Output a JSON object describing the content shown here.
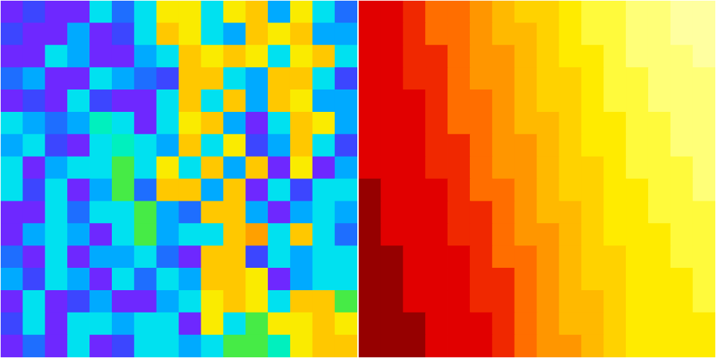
{
  "chart_data": [
    {
      "type": "heatmap",
      "color": "jet",
      "tick_labels": false,
      "value_range": [
        0,
        9
      ],
      "cells": [
        [
          0,
          1,
          0,
          0,
          4,
          2,
          4,
          7,
          7,
          4,
          7,
          8,
          3,
          7,
          4,
          2
        ],
        [
          1,
          0,
          0,
          3,
          0,
          1,
          4,
          8,
          7,
          4,
          3,
          8,
          7,
          8,
          3,
          3
        ],
        [
          0,
          0,
          4,
          3,
          0,
          0,
          3,
          4,
          8,
          7,
          8,
          7,
          4,
          7,
          8,
          4
        ],
        [
          2,
          3,
          0,
          0,
          4,
          3,
          2,
          1,
          8,
          8,
          4,
          3,
          8,
          8,
          4,
          1
        ],
        [
          0,
          1,
          0,
          4,
          1,
          0,
          0,
          4,
          8,
          4,
          8,
          3,
          8,
          7,
          3,
          3
        ],
        [
          4,
          3,
          2,
          3,
          5,
          4,
          0,
          4,
          7,
          8,
          3,
          0,
          4,
          8,
          7,
          3
        ],
        [
          3,
          4,
          1,
          0,
          4,
          5,
          4,
          3,
          8,
          4,
          7,
          1,
          3,
          8,
          4,
          1
        ],
        [
          4,
          0,
          3,
          4,
          4,
          6,
          4,
          7,
          4,
          8,
          3,
          8,
          0,
          7,
          0,
          3
        ],
        [
          4,
          1,
          4,
          0,
          3,
          6,
          2,
          8,
          8,
          3,
          8,
          0,
          4,
          1,
          4,
          4
        ],
        [
          0,
          0,
          4,
          2,
          4,
          4,
          6,
          3,
          2,
          8,
          8,
          3,
          0,
          3,
          4,
          3
        ],
        [
          0,
          3,
          4,
          3,
          0,
          4,
          6,
          3,
          4,
          4,
          8,
          9,
          4,
          8,
          4,
          2
        ],
        [
          2,
          0,
          4,
          0,
          3,
          3,
          4,
          2,
          0,
          8,
          8,
          1,
          4,
          3,
          4,
          4
        ],
        [
          3,
          1,
          4,
          3,
          0,
          4,
          2,
          4,
          3,
          8,
          8,
          7,
          0,
          3,
          4,
          4
        ],
        [
          0,
          4,
          0,
          1,
          3,
          0,
          0,
          3,
          4,
          7,
          8,
          7,
          4,
          8,
          8,
          6
        ],
        [
          1,
          4,
          0,
          4,
          4,
          3,
          4,
          4,
          0,
          7,
          4,
          6,
          7,
          7,
          8,
          7
        ],
        [
          0,
          2,
          0,
          4,
          0,
          1,
          4,
          4,
          3,
          4,
          6,
          6,
          5,
          7,
          8,
          8
        ]
      ]
    },
    {
      "type": "heatmap",
      "color": "hot",
      "tick_labels": false,
      "value_range": [
        0,
        10
      ],
      "cells": [
        [
          1,
          1,
          2,
          3,
          3,
          4,
          5,
          6,
          6,
          7,
          8,
          8,
          9,
          9,
          10,
          10
        ],
        [
          1,
          1,
          2,
          3,
          3,
          4,
          5,
          5,
          6,
          7,
          8,
          8,
          9,
          9,
          10,
          10
        ],
        [
          1,
          1,
          2,
          2,
          3,
          4,
          4,
          5,
          6,
          7,
          7,
          8,
          9,
          9,
          9,
          10
        ],
        [
          1,
          1,
          2,
          2,
          3,
          4,
          4,
          5,
          6,
          6,
          7,
          8,
          8,
          9,
          9,
          9
        ],
        [
          1,
          1,
          1,
          2,
          3,
          3,
          4,
          5,
          6,
          6,
          7,
          8,
          8,
          9,
          9,
          9
        ],
        [
          1,
          1,
          1,
          2,
          3,
          3,
          4,
          5,
          5,
          6,
          7,
          7,
          8,
          8,
          9,
          9
        ],
        [
          1,
          1,
          1,
          2,
          2,
          3,
          4,
          4,
          5,
          6,
          7,
          7,
          8,
          8,
          9,
          9
        ],
        [
          1,
          1,
          1,
          2,
          2,
          3,
          4,
          4,
          5,
          6,
          6,
          7,
          8,
          8,
          8,
          9
        ],
        [
          0,
          1,
          1,
          1,
          2,
          3,
          3,
          4,
          5,
          6,
          6,
          7,
          7,
          8,
          8,
          9
        ],
        [
          0,
          1,
          1,
          1,
          2,
          2,
          3,
          4,
          5,
          5,
          6,
          7,
          7,
          8,
          8,
          8
        ],
        [
          0,
          1,
          1,
          1,
          2,
          2,
          3,
          4,
          4,
          5,
          6,
          7,
          7,
          7,
          8,
          8
        ],
        [
          0,
          0,
          1,
          1,
          1,
          2,
          3,
          3,
          4,
          5,
          6,
          6,
          7,
          7,
          8,
          8
        ],
        [
          0,
          0,
          1,
          1,
          1,
          2,
          2,
          3,
          4,
          5,
          6,
          6,
          7,
          7,
          7,
          8
        ],
        [
          0,
          0,
          1,
          1,
          1,
          2,
          2,
          3,
          4,
          5,
          5,
          6,
          7,
          7,
          7,
          8
        ],
        [
          0,
          0,
          0,
          1,
          1,
          1,
          2,
          3,
          4,
          5,
          5,
          6,
          7,
          7,
          7,
          7
        ],
        [
          0,
          0,
          0,
          1,
          1,
          1,
          2,
          3,
          4,
          4,
          5,
          6,
          7,
          7,
          7,
          7
        ]
      ]
    }
  ]
}
